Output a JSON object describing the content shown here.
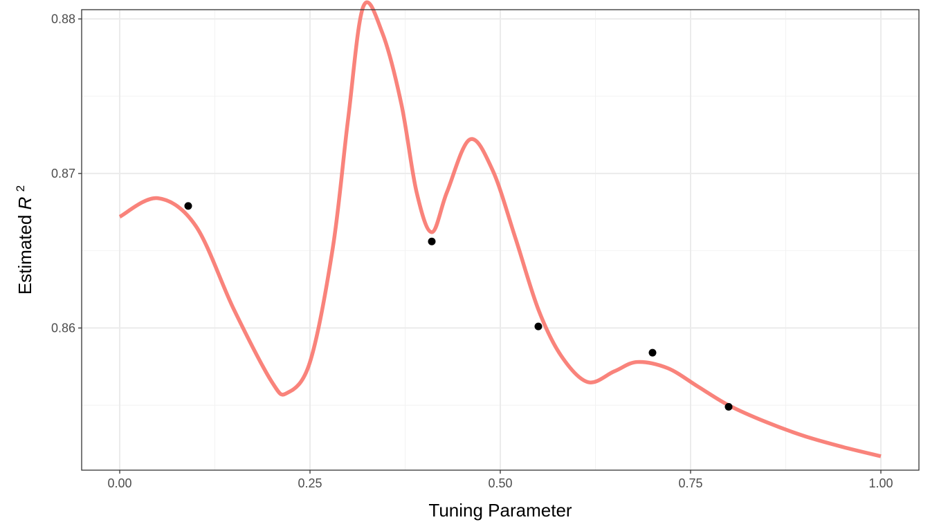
{
  "chart_data": {
    "type": "line",
    "xlabel": "Tuning Parameter",
    "ylabel": {
      "prefix": "Estimated ",
      "symbol": "R",
      "superscript": "2"
    },
    "xlim": [
      -0.05,
      1.05
    ],
    "ylim": [
      0.8508,
      0.8806
    ],
    "x_ticks": [
      0.0,
      0.25,
      0.5,
      0.75,
      1.0
    ],
    "x_tick_labels": [
      "0.00",
      "0.25",
      "0.50",
      "0.75",
      "1.00"
    ],
    "y_ticks": [
      0.86,
      0.87,
      0.88
    ],
    "y_tick_labels": [
      "0.86",
      "0.87",
      "0.88"
    ],
    "grid": true,
    "legend": "none",
    "series": [
      {
        "kind": "line",
        "color": "#F8766D",
        "x": [
          0.0,
          0.05,
          0.1,
          0.15,
          0.2,
          0.22,
          0.25,
          0.28,
          0.3,
          0.32,
          0.345,
          0.37,
          0.39,
          0.41,
          0.43,
          0.46,
          0.49,
          0.52,
          0.55,
          0.58,
          0.615,
          0.65,
          0.68,
          0.72,
          0.76,
          0.8,
          0.85,
          0.9,
          0.95,
          1.0
        ],
        "y": [
          0.8672,
          0.8684,
          0.8666,
          0.8612,
          0.8565,
          0.8558,
          0.8578,
          0.8652,
          0.8735,
          0.8808,
          0.8791,
          0.8745,
          0.8688,
          0.8662,
          0.8688,
          0.8722,
          0.8702,
          0.8658,
          0.8612,
          0.8582,
          0.8565,
          0.8572,
          0.8578,
          0.8574,
          0.8562,
          0.855,
          0.8539,
          0.853,
          0.8523,
          0.8517
        ]
      },
      {
        "kind": "scatter",
        "color": "#000000",
        "x": [
          0.09,
          0.41,
          0.55,
          0.7,
          0.8
        ],
        "y": [
          0.8679,
          0.8656,
          0.8601,
          0.8584,
          0.8549
        ]
      }
    ]
  }
}
